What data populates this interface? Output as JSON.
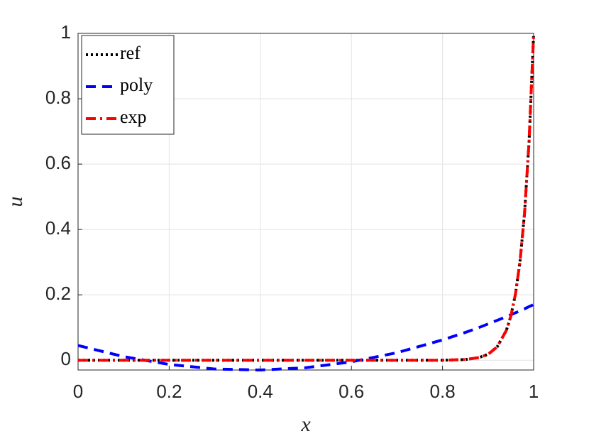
{
  "chart_data": {
    "type": "line",
    "xlabel": "x",
    "ylabel": "u",
    "x": [
      0,
      0.1,
      0.2,
      0.3,
      0.4,
      0.5,
      0.6,
      0.7,
      0.8,
      0.85,
      0.88,
      0.9,
      0.92,
      0.94,
      0.95,
      0.96,
      0.97,
      0.98,
      0.99,
      1
    ],
    "series": [
      {
        "name": "ref",
        "color": "#000000",
        "dash": "dotted",
        "values": [
          0,
          0,
          0,
          0,
          0,
          0,
          0,
          0,
          0,
          0.002,
          0.008,
          0.018,
          0.041,
          0.091,
          0.135,
          0.202,
          0.301,
          0.449,
          0.67,
          1
        ]
      },
      {
        "name": "poly",
        "color": "#0000ff",
        "dash": "dashed",
        "values": [
          0.045,
          0.011,
          -0.013,
          -0.027,
          -0.03,
          -0.023,
          -0.005,
          0.023,
          0.062,
          0.085,
          0.1,
          0.111,
          0.122,
          0.133,
          0.139,
          0.145,
          0.151,
          0.157,
          0.164,
          0.17
        ]
      },
      {
        "name": "exp",
        "color": "#ff0000",
        "dash": "dashdot",
        "values": [
          0,
          0,
          0,
          0,
          0,
          0,
          0,
          0,
          0,
          0.002,
          0.008,
          0.018,
          0.041,
          0.091,
          0.135,
          0.202,
          0.301,
          0.449,
          0.67,
          1
        ]
      }
    ],
    "xlim": [
      0,
      1
    ],
    "xticks": [
      0,
      0.2,
      0.4,
      0.6,
      0.8,
      1
    ],
    "ylim": [
      -0.03,
      1
    ],
    "yticks": [
      0,
      0.2,
      0.4,
      0.6,
      0.8,
      1
    ],
    "grid": true,
    "legend": "upper-left"
  }
}
